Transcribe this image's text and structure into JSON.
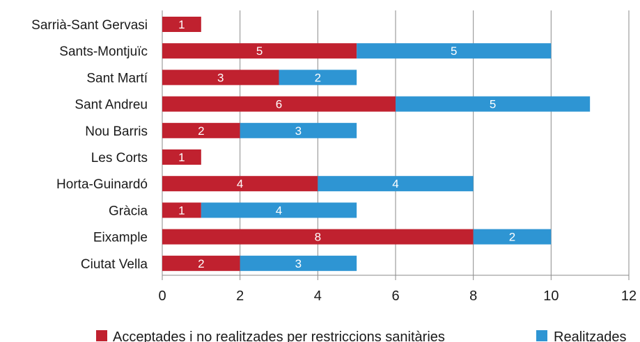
{
  "chart_data": {
    "type": "bar",
    "orientation": "horizontal",
    "stacked": true,
    "categories": [
      "Sarrià-Sant Gervasi",
      "Sants-Montjuïc",
      "Sant Martí",
      "Sant Andreu",
      "Nou Barris",
      "Les Corts",
      "Horta-Guinardó",
      "Gràcia",
      "Eixample",
      "Ciutat Vella"
    ],
    "series": [
      {
        "name": "Acceptades i no realitzades per restriccions sanitàries",
        "color": "#c0212f",
        "values": [
          1,
          5,
          3,
          6,
          2,
          1,
          4,
          1,
          8,
          2
        ]
      },
      {
        "name": "Realitzades",
        "color": "#2e95d3",
        "values": [
          0,
          5,
          2,
          5,
          3,
          0,
          4,
          4,
          2,
          3
        ]
      }
    ],
    "xlim": [
      0,
      12
    ],
    "xticks": [
      "0",
      "2",
      "4",
      "6",
      "8",
      "10",
      "12"
    ],
    "grid": "vertical",
    "legend_position": "bottom"
  }
}
